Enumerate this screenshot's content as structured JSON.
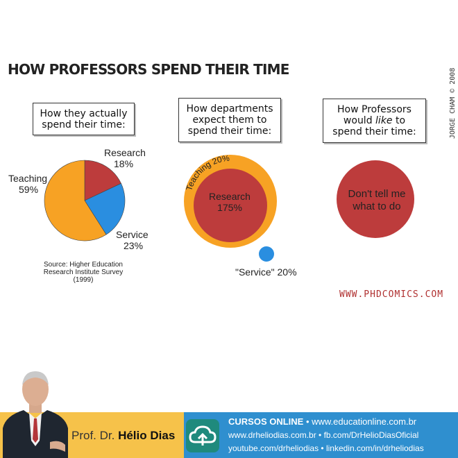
{
  "title": "HOW PROFESSORS SPEND THEIR TIME",
  "copyright": "JORGE CHAM © 2008",
  "panels": {
    "actual_caption": [
      "How they actually",
      "spend their time:"
    ],
    "expect_caption": [
      "How departments",
      "expect them to",
      "spend their time:"
    ],
    "like_caption_pre": "How Professors",
    "like_caption_mid_a": "would ",
    "like_caption_mid_em": "like",
    "like_caption_mid_b": " to",
    "like_caption_post": "spend their time:",
    "source": [
      "Source: Higher Education",
      "Research Institute Survey",
      "(1999)"
    ],
    "like_circle_text": [
      "Don't tell me",
      "what to do"
    ]
  },
  "url": "WWW.PHDCOMICS.COM",
  "colors": {
    "teaching": "#f7a224",
    "research": "#bd3c3c",
    "service": "#2a8ee0"
  },
  "chart_data": [
    {
      "type": "pie",
      "title": "How they actually spend their time:",
      "slices": [
        {
          "name": "Research",
          "value": 18,
          "label": "18%"
        },
        {
          "name": "Service",
          "value": 23,
          "label": "23%"
        },
        {
          "name": "Teaching",
          "value": 59,
          "label": "59%"
        }
      ]
    },
    {
      "type": "bubble",
      "title": "How departments expect them to spend their time:",
      "circles": [
        {
          "name": "Teaching",
          "value": 20,
          "label": "Teaching 20%"
        },
        {
          "name": "Research",
          "value": 175,
          "label": "175%"
        },
        {
          "name": "\"Service\"",
          "value": 20,
          "label": "\"Service\" 20%"
        }
      ]
    }
  ],
  "footer": {
    "prof_prefix": "Prof. Dr. ",
    "prof_name": "Hélio Dias",
    "line1_strong": "CURSOS ONLINE",
    "line1_rest": " • www.educationline.com.br",
    "line2": "www.drheliodias.com.br • fb.com/DrHelioDiasOficial",
    "line3": "youtube.com/drheliodias • linkedin.com/in/drheliodias",
    "badge_icon": "cloud-upload-icon",
    "avatar_icon": "person-photo"
  }
}
